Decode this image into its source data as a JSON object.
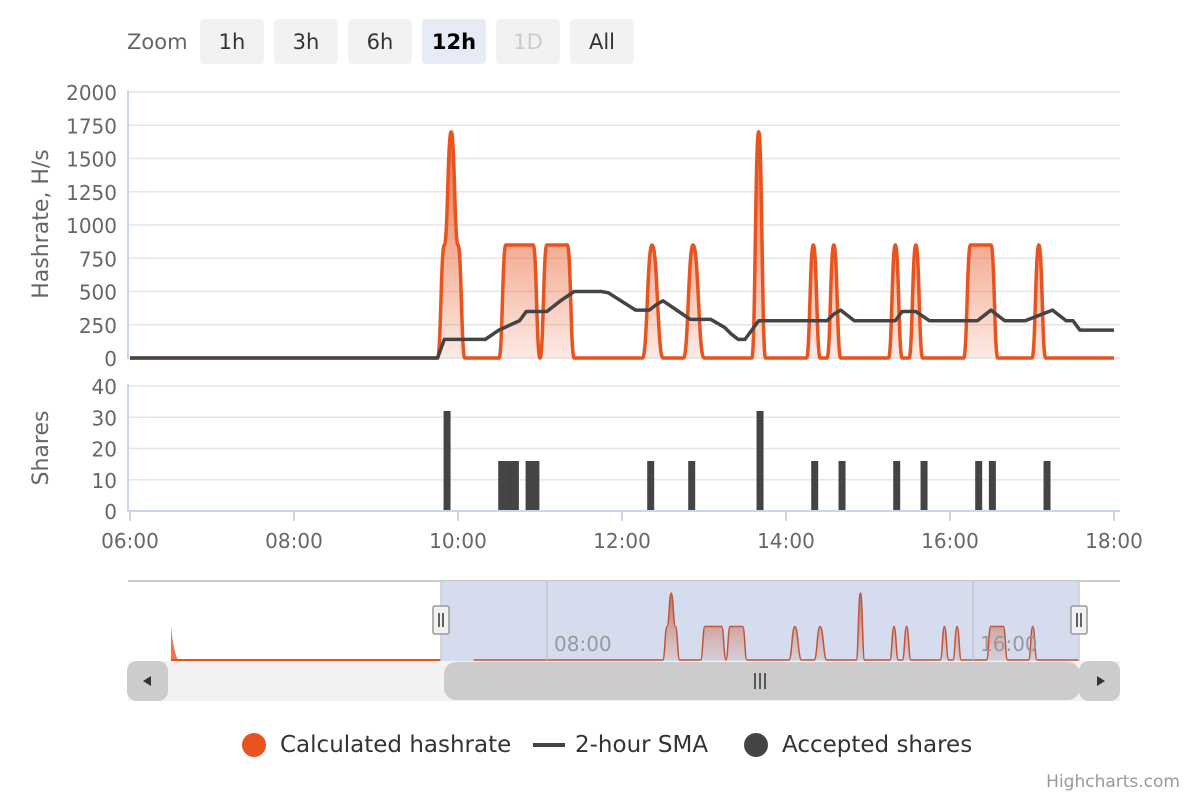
{
  "zoom": {
    "label": "Zoom",
    "buttons": [
      "1h",
      "3h",
      "6h",
      "12h",
      "1D",
      "All"
    ],
    "selected": "12h",
    "disabled": "1D"
  },
  "colors": {
    "hashrate": "#e8531f",
    "sma": "#444444",
    "shares": "#444444",
    "navigator_mask": "#ccd6eb",
    "grid": "#e6e6e6",
    "axis_line": "#ccd6eb"
  },
  "chart_data": [
    {
      "type": "area",
      "name": "hashrate-panel",
      "ylabel": "Hashrate, H/s",
      "ylim": [
        0,
        2000
      ],
      "yticks": [
        0,
        250,
        500,
        750,
        1000,
        1250,
        1500,
        1750,
        2000
      ],
      "series": [
        {
          "name": "Calculated hashrate",
          "type": "area",
          "x": [
            "06:00",
            "09:45",
            "09:50",
            "09:55",
            "10:00",
            "10:05",
            "10:30",
            "10:35",
            "10:45",
            "10:55",
            "11:00",
            "11:05",
            "11:10",
            "11:20",
            "11:25",
            "11:30",
            "12:15",
            "12:22",
            "12:30",
            "12:45",
            "12:52",
            "13:00",
            "13:35",
            "13:40",
            "13:45",
            "14:15",
            "14:20",
            "14:25",
            "14:30",
            "14:35",
            "14:40",
            "14:45",
            "15:15",
            "15:20",
            "15:25",
            "15:30",
            "15:35",
            "15:40",
            "15:45",
            "16:10",
            "16:15",
            "16:25",
            "16:30",
            "16:35",
            "17:00",
            "17:05",
            "17:10",
            "18:00"
          ],
          "values": [
            0,
            0,
            850,
            1700,
            850,
            0,
            0,
            850,
            850,
            850,
            0,
            850,
            850,
            850,
            0,
            0,
            0,
            850,
            0,
            0,
            850,
            0,
            0,
            1700,
            0,
            0,
            850,
            0,
            0,
            850,
            0,
            0,
            0,
            850,
            0,
            0,
            850,
            0,
            0,
            0,
            850,
            850,
            850,
            0,
            0,
            850,
            0,
            0
          ]
        },
        {
          "name": "2-hour SMA",
          "type": "line",
          "x": [
            "06:00",
            "09:45",
            "09:50",
            "10:20",
            "10:30",
            "10:45",
            "10:50",
            "11:05",
            "11:15",
            "11:25",
            "11:35",
            "11:45",
            "11:50",
            "12:10",
            "12:20",
            "12:25",
            "12:30",
            "12:40",
            "12:50",
            "13:05",
            "13:15",
            "13:20",
            "13:25",
            "13:30",
            "13:40",
            "14:30",
            "14:35",
            "14:40",
            "14:50",
            "15:20",
            "15:25",
            "15:35",
            "15:45",
            "16:20",
            "16:25",
            "16:30",
            "16:40",
            "16:55",
            "17:05",
            "17:15",
            "17:25",
            "17:30",
            "17:35",
            "18:00"
          ],
          "values": [
            0,
            0,
            140,
            140,
            210,
            280,
            350,
            350,
            430,
            500,
            500,
            500,
            490,
            360,
            360,
            400,
            430,
            360,
            290,
            290,
            230,
            180,
            140,
            140,
            280,
            280,
            330,
            360,
            280,
            280,
            350,
            350,
            280,
            280,
            320,
            360,
            280,
            280,
            320,
            360,
            280,
            280,
            210,
            210
          ]
        }
      ]
    },
    {
      "type": "bar",
      "name": "shares-panel",
      "ylabel": "Shares",
      "ylim": [
        0,
        40
      ],
      "yticks": [
        0,
        10,
        20,
        30,
        40
      ],
      "series": [
        {
          "name": "Accepted shares",
          "x": [
            "09:52",
            "10:32",
            "10:37",
            "10:42",
            "10:52",
            "10:57",
            "12:21",
            "12:51",
            "13:41",
            "14:21",
            "14:41",
            "15:21",
            "15:41",
            "16:21",
            "16:31",
            "17:11"
          ],
          "values": [
            32,
            16,
            16,
            16,
            16,
            16,
            16,
            16,
            32,
            16,
            16,
            16,
            16,
            16,
            16,
            16
          ]
        }
      ]
    }
  ],
  "xaxis": {
    "ticks": [
      "06:00",
      "08:00",
      "10:00",
      "12:00",
      "14:00",
      "16:00",
      "18:00"
    ],
    "range": [
      "06:00",
      "18:00"
    ]
  },
  "navigator": {
    "labels": [
      "08:00",
      "16:00"
    ],
    "range": [
      "00:00",
      "18:00"
    ],
    "selected_range": [
      "06:00",
      "18:00"
    ]
  },
  "legend": {
    "items": [
      {
        "label": "Calculated hashrate",
        "symbol": "dot",
        "color": "#e8531f"
      },
      {
        "label": "2-hour SMA",
        "symbol": "line",
        "color": "#444444"
      },
      {
        "label": "Accepted shares",
        "symbol": "dot",
        "color": "#444444"
      }
    ]
  },
  "credits": "Highcharts.com"
}
